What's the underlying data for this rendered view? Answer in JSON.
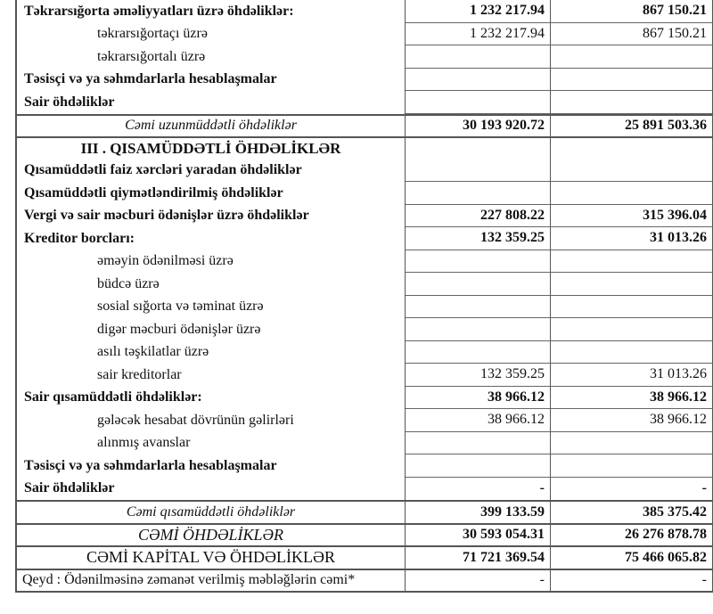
{
  "rows": [
    {
      "label": "Təkrarsığorta əməliyyatları üzrə öhdəliklər:",
      "v1": "1 232 217.94",
      "v2": "867 150.21",
      "type": "b"
    },
    {
      "label": "təkrarsığortaçı üzrə",
      "v1": "1 232 217.94",
      "v2": "867 150.21",
      "type": "ind"
    },
    {
      "label": "təkrarsığortalı üzrə",
      "v1": "",
      "v2": "",
      "type": "ind"
    },
    {
      "label": "Təsisçi və ya səhmdarlarla hesablaşmalar",
      "v1": "",
      "v2": "",
      "type": "b"
    },
    {
      "label": "Sair öhdəliklər",
      "v1": "",
      "v2": "",
      "type": "b"
    },
    {
      "label": "Cəmi uzunmüddətli öhdəliklər",
      "v1": "30 193 920.72",
      "v2": "25 891 503.36",
      "type": "tot full"
    },
    {
      "label": "III . QISAMÜDDƏTLİ ÖHDƏLİKLƏR",
      "v1": "",
      "v2": "",
      "type": "sec full"
    },
    {
      "label": "Qısamüddətli faiz xərcləri yaradan öhdəliklər",
      "v1": "",
      "v2": "",
      "type": "b"
    },
    {
      "label": "Qısamüddətli qiymətləndirilmiş öhdəliklər",
      "v1": "",
      "v2": "",
      "type": "b"
    },
    {
      "label": "Vergi və sair məcburi ödənişlər üzrə öhdəliklər",
      "v1": "227 808.22",
      "v2": "315 396.04",
      "type": "b"
    },
    {
      "label": "Kreditor borcları:",
      "v1": "132 359.25",
      "v2": "31 013.26",
      "type": "b"
    },
    {
      "label": "əməyin ödənilməsi üzrə",
      "v1": "",
      "v2": "",
      "type": "ind"
    },
    {
      "label": "büdcə üzrə",
      "v1": "",
      "v2": "",
      "type": "ind"
    },
    {
      "label": "sosial sığorta və təminat üzrə",
      "v1": "",
      "v2": "",
      "type": "ind"
    },
    {
      "label": "digər məcburi ödənişlər üzrə",
      "v1": "",
      "v2": "",
      "type": "ind"
    },
    {
      "label": "asılı təşkilatlar üzrə",
      "v1": "",
      "v2": "",
      "type": "ind"
    },
    {
      "label": "sair kreditorlar",
      "v1": "132 359.25",
      "v2": "31 013.26",
      "type": "ind"
    },
    {
      "label": "Sair qısamüddətli öhdəliklər:",
      "v1": "38 966.12",
      "v2": "38 966.12",
      "type": "b"
    },
    {
      "label": "gələcək hesabat dövrünün gəlirləri",
      "v1": "38 966.12",
      "v2": "38 966.12",
      "type": "ind"
    },
    {
      "label": "alınmış avanslar",
      "v1": "",
      "v2": "",
      "type": "ind"
    },
    {
      "label": "Təsisçi və ya səhmdarlarla hesablaşmalar",
      "v1": "",
      "v2": "",
      "type": "b"
    },
    {
      "label": "Sair öhdəliklər",
      "v1": "-",
      "v2": "-",
      "type": "b last"
    },
    {
      "label": "Cəmi qısamüddətli öhdəliklər",
      "v1": "399 133.59",
      "v2": "385 375.42",
      "type": "tot full"
    },
    {
      "label": "CƏMİ ÖHDƏLİKLƏR",
      "v1": "30 593 054.31",
      "v2": "26 276 878.78",
      "type": "g1 full"
    },
    {
      "label": "CƏMİ KAPİTAL VƏ ÖHDƏLİKLƏR",
      "v1": "71 721 369.54",
      "v2": "75 466 065.82",
      "type": "g2 full"
    },
    {
      "label": "Qeyd : Ödənilməsinə zəmanət verilmiş məbləğlərin cəmi*",
      "v1": "-",
      "v2": "-",
      "type": "note full last"
    }
  ]
}
